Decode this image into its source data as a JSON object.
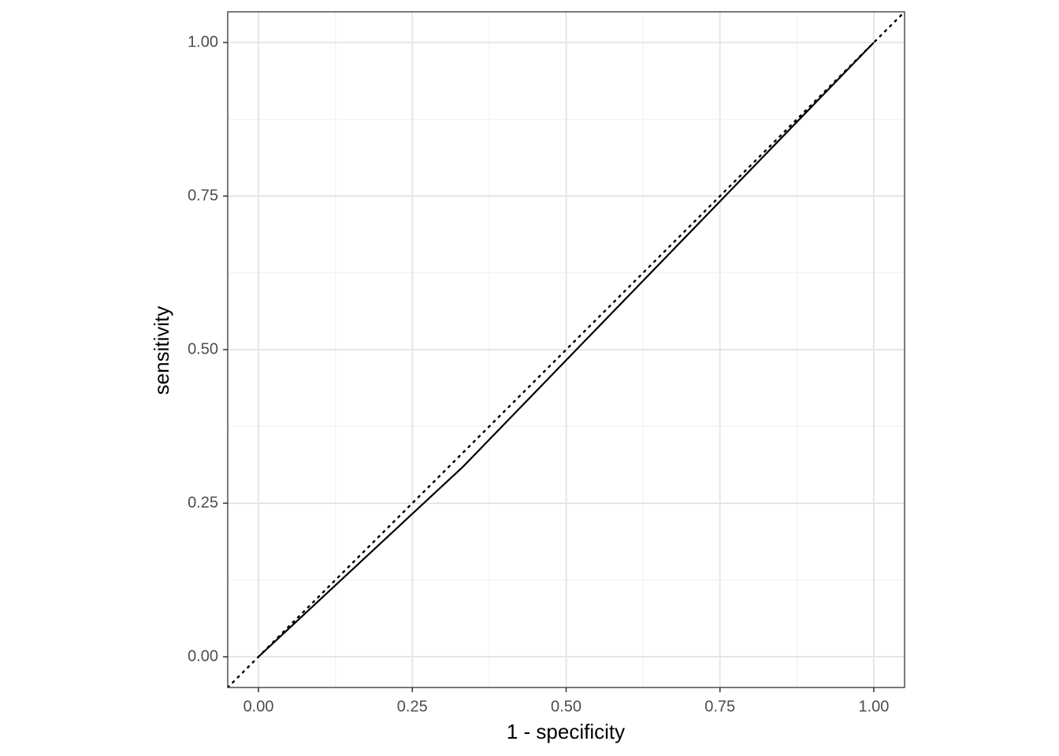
{
  "chart_data": {
    "type": "line",
    "xlabel": "1 - specificity",
    "ylabel": "sensitivity",
    "x": [
      0,
      0.333,
      1
    ],
    "series": [
      {
        "color": "#000000",
        "values": [
          0,
          0.31,
          1
        ]
      }
    ],
    "reference_line": {
      "slope": 1,
      "intercept": 0,
      "color": "#000000",
      "style": "dotted"
    },
    "xlim": [
      -0.05,
      1.05
    ],
    "ylim": [
      -0.05,
      1.05
    ],
    "xticks": [
      {
        "value": 0,
        "label": "0.00"
      },
      {
        "value": 0.25,
        "label": "0.25"
      },
      {
        "value": 0.5,
        "label": "0.50"
      },
      {
        "value": 0.75,
        "label": "0.75"
      },
      {
        "value": 1,
        "label": "1.00"
      }
    ],
    "yticks": [
      {
        "value": 0,
        "label": "0.00"
      },
      {
        "value": 0.25,
        "label": "0.25"
      },
      {
        "value": 0.5,
        "label": "0.50"
      },
      {
        "value": 0.75,
        "label": "0.75"
      },
      {
        "value": 1,
        "label": "1.00"
      }
    ],
    "grid": true,
    "minor_grid": true
  }
}
